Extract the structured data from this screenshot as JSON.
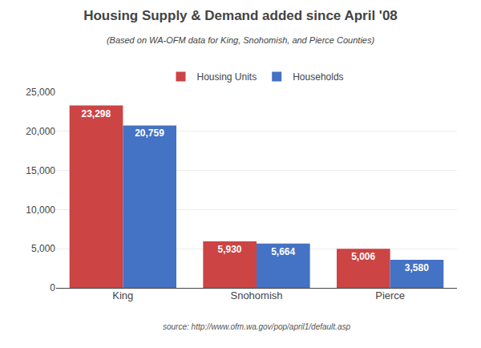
{
  "chart_data": {
    "type": "bar",
    "title": "Housing Supply & Demand added since April '08",
    "subtitle": "(Based on WA-OFM data for King, Snohomish, and Pierce Counties)",
    "annotations": [
      "source: http://www.ofm.wa.gov/pop/april1/default.asp"
    ],
    "categories": [
      "King",
      "Snohomish",
      "Pierce"
    ],
    "series": [
      {
        "name": "Housing Units",
        "color": "#CC4444",
        "values": [
          23298,
          5930,
          5006
        ],
        "value_labels": [
          "23,298",
          "5,930",
          "5,006"
        ]
      },
      {
        "name": "Households",
        "color": "#4472C4",
        "values": [
          20759,
          5664,
          3580
        ],
        "value_labels": [
          "20,759",
          "5,664",
          "3,580"
        ]
      }
    ],
    "ylim": [
      0,
      25000
    ],
    "yticks": [
      0,
      {
        "value": 5000,
        "label": "5,000"
      },
      {
        "value": 10000,
        "label": "10,000"
      },
      {
        "value": 15000,
        "label": "15,000"
      },
      {
        "value": 20000,
        "label": "20,000"
      },
      {
        "value": 25000,
        "label": "25,000"
      }
    ],
    "grid": true,
    "legend": "top",
    "data_labels": true
  }
}
